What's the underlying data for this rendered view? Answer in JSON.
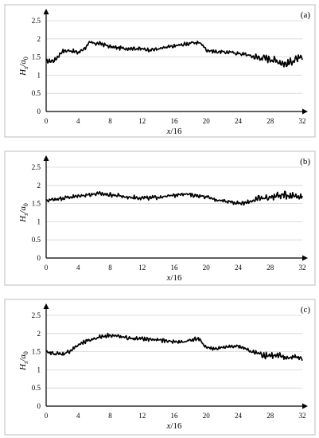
{
  "chart_data": [
    {
      "type": "line",
      "panel_label": "(a)",
      "xlabel": "x/16",
      "ylabel": "Hs/a0",
      "xlim": [
        0,
        32
      ],
      "ylim": [
        0,
        2.5
      ],
      "xticks": [
        "0",
        "4",
        "8",
        "12",
        "16",
        "20",
        "24",
        "28",
        "32"
      ],
      "yticks": [
        "0",
        "0.5",
        "1",
        "1.5",
        "2",
        "2.5"
      ],
      "grid": "horizontal",
      "series": [
        {
          "x": [
            0,
            1,
            1.5,
            2,
            3,
            4,
            5,
            5.5,
            6,
            7,
            8,
            9,
            10,
            11,
            12,
            13,
            14,
            15,
            16,
            17,
            18,
            19,
            19.5,
            20,
            21,
            22,
            23,
            24,
            25,
            26,
            27,
            28,
            29,
            30,
            31,
            32
          ],
          "y": [
            1.38,
            1.4,
            1.52,
            1.66,
            1.68,
            1.62,
            1.78,
            1.9,
            1.88,
            1.86,
            1.78,
            1.75,
            1.74,
            1.74,
            1.72,
            1.7,
            1.72,
            1.76,
            1.8,
            1.84,
            1.88,
            1.9,
            1.85,
            1.7,
            1.65,
            1.64,
            1.63,
            1.6,
            1.57,
            1.5,
            1.48,
            1.45,
            1.38,
            1.3,
            1.42,
            1.47
          ]
        }
      ]
    },
    {
      "type": "line",
      "panel_label": "(b)",
      "xlabel": "x/16",
      "ylabel": "Hs/a0",
      "xlim": [
        0,
        32
      ],
      "ylim": [
        0,
        2.5
      ],
      "xticks": [
        "0",
        "4",
        "8",
        "12",
        "16",
        "20",
        "24",
        "28",
        "32"
      ],
      "yticks": [
        "0",
        "0.5",
        "1",
        "1.5",
        "2",
        "2.5"
      ],
      "grid": "horizontal",
      "series": [
        {
          "x": [
            0,
            1,
            2,
            3,
            4,
            5,
            6,
            7,
            8,
            9,
            10,
            11,
            12,
            13,
            14,
            15,
            16,
            17,
            18,
            19,
            20,
            21,
            22,
            23,
            24,
            25,
            26,
            27,
            28,
            29,
            30,
            31,
            32
          ],
          "y": [
            1.58,
            1.62,
            1.65,
            1.68,
            1.7,
            1.74,
            1.76,
            1.77,
            1.74,
            1.72,
            1.68,
            1.67,
            1.66,
            1.65,
            1.68,
            1.7,
            1.72,
            1.78,
            1.74,
            1.72,
            1.68,
            1.62,
            1.58,
            1.56,
            1.5,
            1.52,
            1.6,
            1.64,
            1.68,
            1.72,
            1.74,
            1.72,
            1.7
          ]
        }
      ]
    },
    {
      "type": "line",
      "panel_label": "(c)",
      "xlabel": "x/16",
      "ylabel": "Hs/a0",
      "xlim": [
        0,
        32
      ],
      "ylim": [
        0,
        2.5
      ],
      "xticks": [
        "0",
        "4",
        "8",
        "12",
        "16",
        "20",
        "24",
        "28",
        "32"
      ],
      "yticks": [
        "0",
        "0.5",
        "1",
        "1.5",
        "2",
        "2.5"
      ],
      "grid": "horizontal",
      "series": [
        {
          "x": [
            0,
            1,
            2,
            3,
            4,
            5,
            6,
            7,
            8,
            9,
            10,
            11,
            12,
            13,
            14,
            15,
            16,
            17,
            18,
            19,
            20,
            21,
            22,
            23,
            24,
            25,
            26,
            27,
            28,
            29,
            30,
            31,
            32
          ],
          "y": [
            1.48,
            1.45,
            1.43,
            1.52,
            1.68,
            1.78,
            1.86,
            1.92,
            1.96,
            1.92,
            1.88,
            1.86,
            1.85,
            1.84,
            1.82,
            1.8,
            1.78,
            1.76,
            1.82,
            1.86,
            1.62,
            1.58,
            1.6,
            1.64,
            1.66,
            1.56,
            1.48,
            1.42,
            1.4,
            1.37,
            1.33,
            1.35,
            1.32
          ]
        }
      ]
    }
  ]
}
